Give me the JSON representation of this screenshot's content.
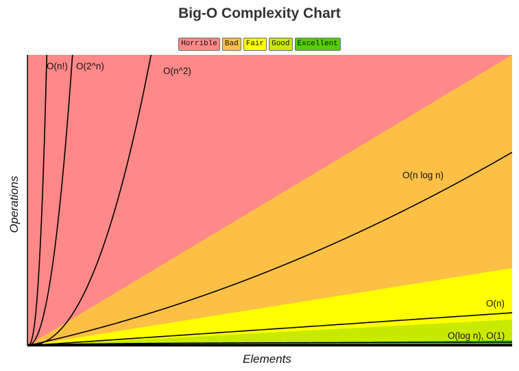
{
  "chart_data": {
    "type": "area",
    "title": "Big-O Complexity Chart",
    "xlabel": "Elements",
    "ylabel": "Operations",
    "grid": false,
    "legend_position": "top-center",
    "legend": [
      {
        "name": "Horrible",
        "color": "#ff8989"
      },
      {
        "name": "Bad",
        "color": "#fdc046"
      },
      {
        "name": "Fair",
        "color": "#ffff00"
      },
      {
        "name": "Good",
        "color": "#c8ea00"
      },
      {
        "name": "Excellent",
        "color": "#53d000"
      }
    ],
    "curves": [
      {
        "name": "O(n!)",
        "label": "O(n!)"
      },
      {
        "name": "O(2^n)",
        "label": "O(2^n)"
      },
      {
        "name": "O(n^2)",
        "label": "O(n^2)"
      },
      {
        "name": "O(n log n)",
        "label": "O(n log n)"
      },
      {
        "name": "O(n)",
        "label": "O(n)"
      },
      {
        "name": "O(log n)",
        "label": ""
      },
      {
        "name": "O(1)",
        "label": "O(log n), O(1)"
      }
    ]
  }
}
